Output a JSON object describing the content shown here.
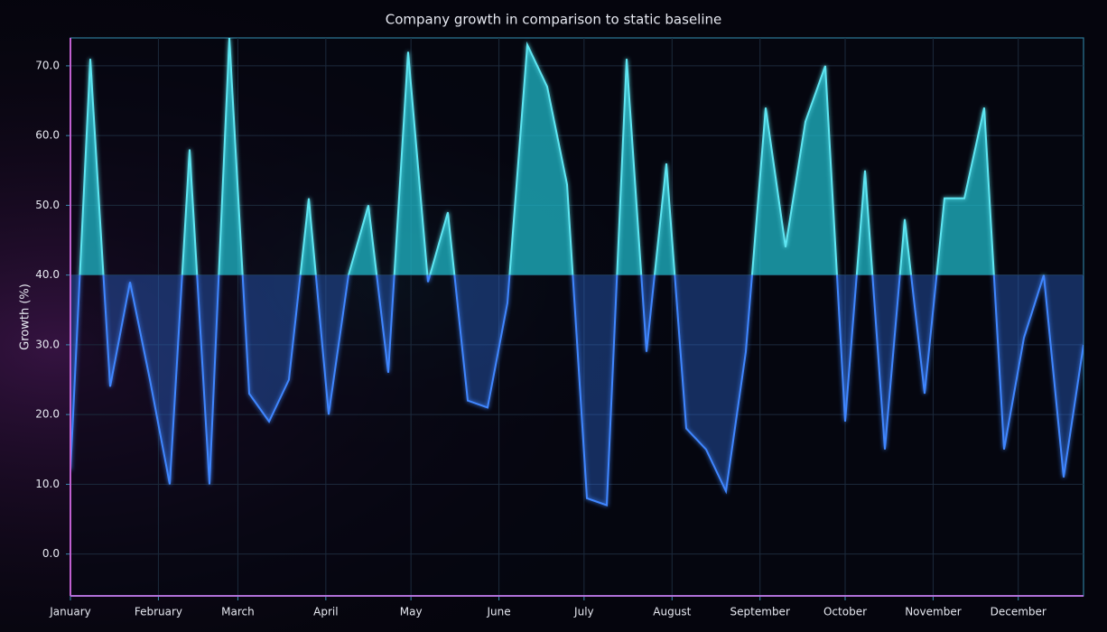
{
  "chart_data": {
    "type": "line",
    "title": "Company growth in comparison to static baseline",
    "y_label": "Growth (%)",
    "x": [
      0,
      7,
      14,
      21,
      28,
      35,
      42,
      49,
      56,
      63,
      70,
      77,
      84,
      91,
      98,
      105,
      112,
      119,
      126,
      133,
      140,
      147,
      154,
      161,
      168,
      175,
      182,
      189,
      196,
      203,
      210,
      217,
      224,
      231,
      238,
      245,
      252,
      259,
      266,
      273,
      280,
      287,
      294,
      301,
      308,
      315,
      322,
      329,
      336,
      343,
      350,
      357
    ],
    "values": [
      12,
      71,
      24,
      39,
      25,
      10,
      58,
      10,
      74,
      23,
      19,
      25,
      51,
      20,
      40,
      50,
      26,
      72,
      39,
      49,
      22,
      21,
      36,
      73,
      67,
      53,
      8,
      7,
      71,
      29,
      56,
      18,
      15,
      9,
      29,
      64,
      44,
      62,
      70,
      19,
      55,
      15,
      48,
      23,
      51,
      51,
      64,
      15,
      31,
      40,
      11,
      30
    ],
    "baseline": 40,
    "color_above": "#1fb8c8",
    "color_below": "#2f6fe0",
    "xlim": [
      0,
      357
    ],
    "xticks": [
      {
        "value": 0,
        "label": "January"
      },
      {
        "value": 31,
        "label": "February"
      },
      {
        "value": 59,
        "label": "March"
      },
      {
        "value": 90,
        "label": "April"
      },
      {
        "value": 120,
        "label": "May"
      },
      {
        "value": 151,
        "label": "June"
      },
      {
        "value": 181,
        "label": "July"
      },
      {
        "value": 212,
        "label": "August"
      },
      {
        "value": 243,
        "label": "September"
      },
      {
        "value": 273,
        "label": "October"
      },
      {
        "value": 304,
        "label": "November"
      },
      {
        "value": 334,
        "label": "December"
      }
    ],
    "ylim": [
      -6,
      74
    ],
    "yticks": [
      {
        "value": 0,
        "label": "0.0"
      },
      {
        "value": 10,
        "label": "10.0"
      },
      {
        "value": 20,
        "label": "20.0"
      },
      {
        "value": 30,
        "label": "30.0"
      },
      {
        "value": 40,
        "label": "40.0"
      },
      {
        "value": 50,
        "label": "50.0"
      },
      {
        "value": 60,
        "label": "60.0"
      },
      {
        "value": 70,
        "label": "70.0"
      }
    ],
    "grid": true
  }
}
